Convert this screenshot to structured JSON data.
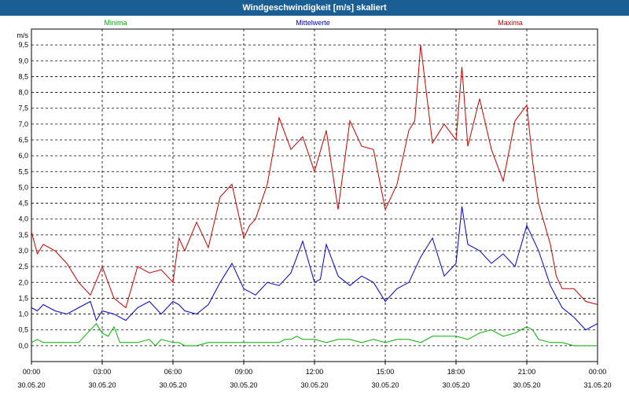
{
  "window": {
    "title": "Windgeschwindigkeit [m/s] skaliert"
  },
  "chart_data": {
    "type": "line",
    "title": "Windgeschwindigkeit [m/s] skaliert",
    "ylabel": "m/s",
    "ylim": [
      -0.5,
      10
    ],
    "y_ticks": [
      "0,0",
      "0,5",
      "1,0",
      "1,5",
      "2,0",
      "2,5",
      "3,0",
      "3,5",
      "4,0",
      "4,5",
      "5,0",
      "5,5",
      "6,0",
      "6,5",
      "7,0",
      "7,5",
      "8,0",
      "8,5",
      "9,0",
      "9,5"
    ],
    "x_range_hours": [
      0,
      24
    ],
    "x_ticks": [
      {
        "time": "00:00",
        "date": "30.05.20"
      },
      {
        "time": "03:00",
        "date": "30.05.20"
      },
      {
        "time": "06:00",
        "date": "30.05.20"
      },
      {
        "time": "09:00",
        "date": "30.05.20"
      },
      {
        "time": "12:00",
        "date": "30.05.20"
      },
      {
        "time": "15:00",
        "date": "30.05.20"
      },
      {
        "time": "18:00",
        "date": "30.05.20"
      },
      {
        "time": "21:00",
        "date": "30.05.20"
      },
      {
        "time": "00:00",
        "date": "31.05.20"
      }
    ],
    "grid": true,
    "legend": "top",
    "series": [
      {
        "name": "Minima",
        "color": "#00b000",
        "x": [
          0,
          0.25,
          0.5,
          0.75,
          1,
          1.5,
          2,
          2.5,
          2.75,
          3,
          3.25,
          3.5,
          3.75,
          4,
          4.5,
          5,
          5.25,
          5.5,
          6,
          6.25,
          6.5,
          7,
          7.5,
          8,
          8.5,
          9,
          9.5,
          10,
          10.5,
          10.75,
          11,
          11.25,
          11.5,
          12,
          12.5,
          13,
          13.5,
          14,
          14.5,
          15,
          15.5,
          16,
          16.5,
          17,
          17.5,
          18,
          18.5,
          19,
          19.5,
          20,
          20.5,
          21,
          21.25,
          21.5,
          22,
          22.5,
          23,
          23.5,
          24
        ],
        "values": [
          0.1,
          0.2,
          0.1,
          0.1,
          0.1,
          0.1,
          0.1,
          0.5,
          0.7,
          0.4,
          0.3,
          0.6,
          0.1,
          0.1,
          0.1,
          0.2,
          0,
          0.2,
          0.1,
          0.1,
          0,
          0,
          0.1,
          0.1,
          0.1,
          0.1,
          0.1,
          0.1,
          0.1,
          0.2,
          0.2,
          0.3,
          0.2,
          0.2,
          0.1,
          0.2,
          0.2,
          0.1,
          0.2,
          0.1,
          0.2,
          0.2,
          0.1,
          0.3,
          0.3,
          0.3,
          0.2,
          0.4,
          0.5,
          0.3,
          0.4,
          0.6,
          0.5,
          0.2,
          0.1,
          0.1,
          0,
          0,
          0
        ]
      },
      {
        "name": "Mittelwerte",
        "color": "#0000c0",
        "x": [
          0,
          0.25,
          0.5,
          1,
          1.5,
          2,
          2.5,
          2.75,
          3,
          3.5,
          4,
          4.5,
          5,
          5.5,
          6,
          6.25,
          6.5,
          7,
          7.5,
          8,
          8.5,
          9,
          9.5,
          10,
          10.5,
          11,
          11.5,
          12,
          12.25,
          12.5,
          13,
          13.5,
          14,
          14.5,
          15,
          15.5,
          16,
          16.5,
          17,
          17.5,
          18,
          18.25,
          18.5,
          19,
          19.5,
          20,
          20.5,
          21,
          21.5,
          22,
          22.5,
          23,
          23.5,
          24
        ],
        "values": [
          1.2,
          1.1,
          1.3,
          1.1,
          1.0,
          1.2,
          1.4,
          0.8,
          1.1,
          1.0,
          0.8,
          1.2,
          1.4,
          1.0,
          1.4,
          1.3,
          1.1,
          1.0,
          1.3,
          2.0,
          2.6,
          1.8,
          1.6,
          2.0,
          1.9,
          2.3,
          3.3,
          2.0,
          2.1,
          3.2,
          2.2,
          1.9,
          2.2,
          2.0,
          1.4,
          1.8,
          2.0,
          2.8,
          3.4,
          2.2,
          2.6,
          4.4,
          3.2,
          3.0,
          2.6,
          2.9,
          2.5,
          3.8,
          3.0,
          1.9,
          1.2,
          0.9,
          0.5,
          0.7
        ]
      },
      {
        "name": "Maxima",
        "color": "#c00000",
        "x": [
          0,
          0.25,
          0.5,
          1,
          1.5,
          2,
          2.5,
          3,
          3.5,
          4,
          4.5,
          5,
          5.5,
          6,
          6.25,
          6.5,
          7,
          7.5,
          8,
          8.5,
          9,
          9.25,
          9.5,
          10,
          10.5,
          11,
          11.5,
          12,
          12.5,
          13,
          13.5,
          14,
          14.5,
          15,
          15.5,
          16,
          16.25,
          16.5,
          17,
          17.5,
          18,
          18.25,
          18.5,
          19,
          19.5,
          20,
          20.5,
          21,
          21.25,
          21.5,
          22,
          22.25,
          22.5,
          23,
          23.5,
          24
        ],
        "values": [
          3.6,
          2.9,
          3.2,
          3.0,
          2.6,
          2.0,
          1.6,
          2.5,
          1.5,
          1.2,
          2.5,
          2.3,
          2.4,
          2.0,
          3.4,
          3.0,
          3.9,
          3.1,
          4.7,
          5.1,
          3.4,
          3.8,
          4.0,
          5.1,
          7.2,
          6.2,
          6.6,
          5.5,
          6.8,
          4.3,
          7.1,
          6.3,
          6.2,
          4.3,
          5.1,
          6.8,
          7.1,
          9.5,
          6.4,
          7.0,
          6.5,
          8.8,
          6.3,
          7.8,
          6.2,
          5.2,
          7.1,
          7.6,
          5.8,
          4.5,
          3.2,
          2.2,
          1.8,
          1.8,
          1.4,
          1.3
        ]
      }
    ]
  }
}
